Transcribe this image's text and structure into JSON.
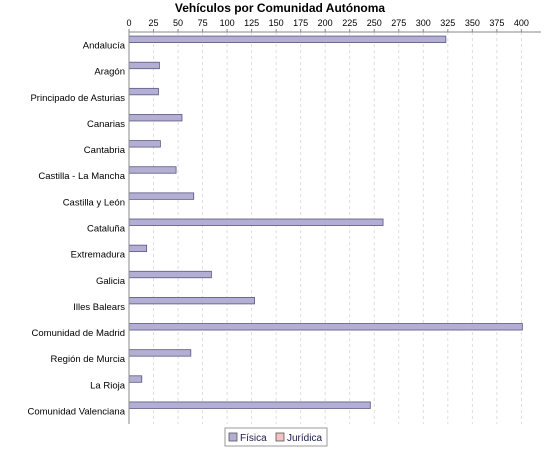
{
  "chart_data": {
    "type": "bar",
    "orientation": "horizontal",
    "title": "Vehículos por Comunidad Autónoma",
    "xlabel": "",
    "ylabel": "",
    "categories": [
      "Andalucía",
      "Aragón",
      "Principado de Asturias",
      "Canarias",
      "Cantabria",
      "Castilla - La Mancha",
      "Castilla y León",
      "Cataluña",
      "Extremadura",
      "Galicia",
      "Illes Balears",
      "Comunidad de Madrid",
      "Región de Murcia",
      "La Rioja",
      "Comunidad Valenciana"
    ],
    "series": [
      {
        "name": "Física",
        "color": "#b3aed4",
        "values": [
          323,
          31,
          30,
          54,
          32,
          48,
          66,
          259,
          18,
          84,
          128,
          401,
          63,
          13,
          246
        ]
      },
      {
        "name": "Jurídica",
        "color": "#f4c2c2",
        "values": [
          0,
          0,
          0,
          0,
          0,
          0,
          0,
          0,
          0,
          0,
          0,
          0,
          0,
          0,
          0
        ]
      }
    ],
    "xlim": [
      0,
      420
    ],
    "xticks": [
      "0",
      "25",
      "50",
      "75",
      "100",
      "125",
      "150",
      "175",
      "200",
      "225",
      "250",
      "275",
      "300",
      "325",
      "350",
      "375",
      "400"
    ],
    "axis_position": "top",
    "grid": true,
    "legend_position": "bottom"
  }
}
